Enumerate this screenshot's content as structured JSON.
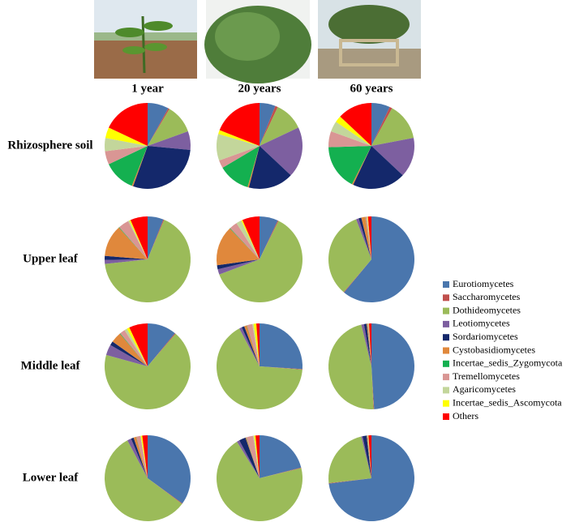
{
  "chart_data": {
    "type": "pie",
    "categories": [
      "Eurotiomycetes",
      "Saccharomycetes",
      "Dothideomycetes",
      "Leotiomycetes",
      "Sordariomycetes",
      "Cystobasidiomycetes",
      "Incertae_sedis_Zygomycota",
      "Tremellomycetes",
      "Agaricomycetes",
      "Incertae_sedis_Ascomycota",
      "Others"
    ],
    "colors": [
      "#4a76ad",
      "#c0504d",
      "#9bbb59",
      "#7d5fa0",
      "#14286b",
      "#e0883c",
      "#14b050",
      "#d99694",
      "#c3d69b",
      "#ffff00",
      "#ff0000"
    ],
    "columns": [
      "1 year",
      "20 years",
      "60 years"
    ],
    "rows": [
      {
        "label": "Rhizosphere soil",
        "values": [
          [
            8,
            0.5,
            11,
            7,
            29,
            0.5,
            12,
            5,
            5,
            4,
            18
          ],
          [
            6,
            1,
            11,
            19,
            17,
            0.5,
            12,
            3,
            10,
            1.5,
            19
          ],
          [
            7,
            1,
            14,
            15,
            20,
            0.5,
            17,
            6,
            4,
            2.5,
            13
          ]
        ]
      },
      {
        "label": "Upper leaf",
        "values": [
          [
            6,
            0.3,
            67,
            1.5,
            1.5,
            12,
            0.2,
            4,
            0.5,
            0.5,
            6.5
          ],
          [
            7,
            0.3,
            62,
            2,
            1.5,
            15,
            0.2,
            3,
            2,
            0.5,
            6.5
          ],
          [
            61,
            0.2,
            33,
            1,
            1,
            1.5,
            0.1,
            0.5,
            0.2,
            0.2,
            1.3
          ]
        ]
      },
      {
        "label": "Middle leaf",
        "values": [
          [
            11,
            0.3,
            68,
            4,
            1.5,
            4,
            0.2,
            2,
            1,
            1,
            7
          ],
          [
            26,
            0.2,
            66,
            1,
            1,
            1,
            0.1,
            2,
            0.5,
            1,
            1.2
          ],
          [
            49,
            0.2,
            47,
            1,
            1,
            0.3,
            0.1,
            0.3,
            0.1,
            0.1,
            0.9
          ]
        ]
      },
      {
        "label": "Lower leaf",
        "values": [
          [
            35,
            0.2,
            57,
            1.5,
            1,
            1,
            0.1,
            1.5,
            0.2,
            0.5,
            2
          ],
          [
            21,
            0.2,
            70,
            1,
            2.5,
            0.3,
            0.1,
            2.5,
            0.4,
            0.5,
            1.5
          ],
          [
            73,
            0.2,
            23,
            0.5,
            1.5,
            0.2,
            0.1,
            0.2,
            0.1,
            0.1,
            1.1
          ]
        ]
      }
    ]
  }
}
